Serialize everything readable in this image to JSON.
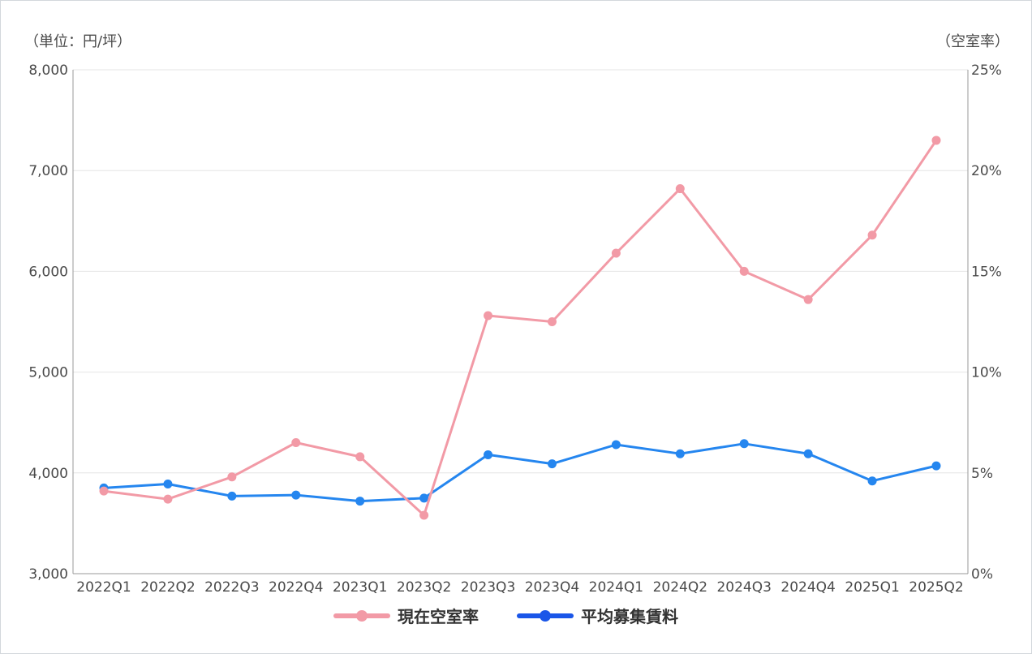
{
  "chart_data": {
    "type": "line",
    "categories": [
      "2022Q1",
      "2022Q2",
      "2022Q3",
      "2022Q4",
      "2023Q1",
      "2023Q2",
      "2023Q3",
      "2023Q4",
      "2024Q1",
      "2024Q2",
      "2024Q3",
      "2024Q4",
      "2025Q1",
      "2025Q2"
    ],
    "left_axis": {
      "unit_label": "（単位：円/坪）",
      "ylim": [
        3000,
        8000
      ],
      "ticks": [
        3000,
        4000,
        5000,
        6000,
        7000,
        8000
      ],
      "tick_labels": [
        "3,000",
        "4,000",
        "5,000",
        "6,000",
        "7,000",
        "8,000"
      ]
    },
    "right_axis": {
      "unit_label": "（空室率）",
      "ylim": [
        0,
        25
      ],
      "ticks": [
        0,
        5,
        10,
        15,
        20,
        25
      ],
      "tick_labels": [
        "0%",
        "5%",
        "10%",
        "15%",
        "20%",
        "25%"
      ]
    },
    "series": [
      {
        "name": "現在空室率",
        "axis": "right",
        "color": "#f29aa6",
        "values": [
          4.1,
          3.7,
          4.8,
          6.5,
          5.8,
          2.9,
          12.8,
          12.5,
          15.9,
          19.1,
          15.0,
          13.6,
          16.8,
          21.5
        ]
      },
      {
        "name": "平均募集賃料",
        "axis": "left",
        "color": "#2586ef",
        "legend_color": "#1a56e8",
        "values": [
          3850,
          3890,
          3770,
          3780,
          3720,
          3750,
          4180,
          4090,
          4280,
          4190,
          4290,
          4190,
          3920,
          4070
        ]
      }
    ],
    "grid": true,
    "legend_position": "bottom-center"
  }
}
